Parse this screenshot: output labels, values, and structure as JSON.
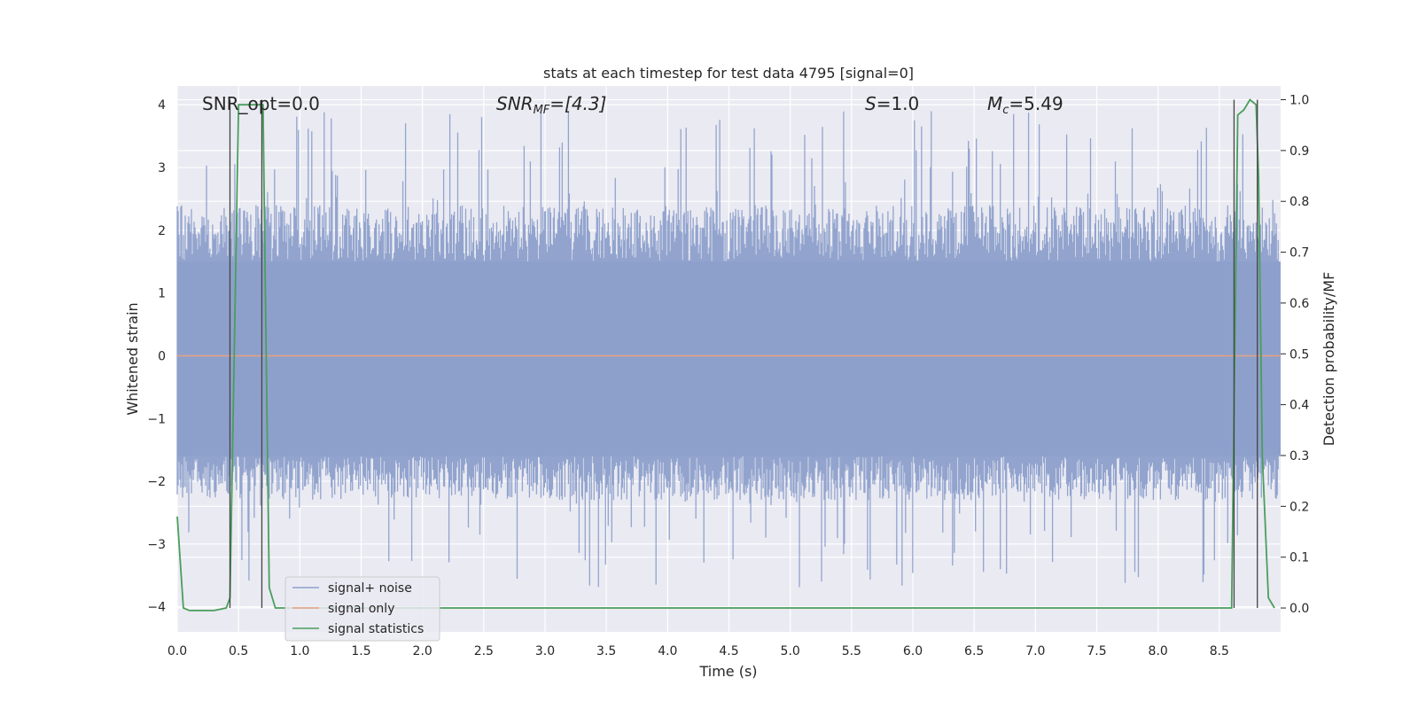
{
  "chart_data": {
    "type": "line",
    "title": "stats at each timestep for test data 4795 [signal=0]",
    "xlabel": "Time (s)",
    "ylabel": "Whitened strain",
    "y2label": "Detection probability/MF",
    "xlim": [
      0.0,
      9.0
    ],
    "ylim": [
      -4.4,
      4.3
    ],
    "y2lim": [
      -0.047,
      1.027
    ],
    "xticks": [
      "0.0",
      "0.5",
      "1.0",
      "1.5",
      "2.0",
      "2.5",
      "3.0",
      "3.5",
      "4.0",
      "4.5",
      "5.0",
      "5.5",
      "6.0",
      "6.5",
      "7.0",
      "7.5",
      "8.0",
      "8.5"
    ],
    "xtick_values": [
      0.0,
      0.5,
      1.0,
      1.5,
      2.0,
      2.5,
      3.0,
      3.5,
      4.0,
      4.5,
      5.0,
      5.5,
      6.0,
      6.5,
      7.0,
      7.5,
      8.0,
      8.5
    ],
    "yticks": [
      "−4",
      "−3",
      "−2",
      "−1",
      "0",
      "1",
      "2",
      "3",
      "4"
    ],
    "ytick_values": [
      -4,
      -3,
      -2,
      -1,
      0,
      1,
      2,
      3,
      4
    ],
    "y2ticks": [
      "0.0",
      "0.1",
      "0.2",
      "0.3",
      "0.4",
      "0.5",
      "0.6",
      "0.7",
      "0.8",
      "0.9",
      "1.0"
    ],
    "y2tick_values": [
      0.0,
      0.1,
      0.2,
      0.3,
      0.4,
      0.5,
      0.6,
      0.7,
      0.8,
      0.9,
      1.0
    ],
    "grid": true,
    "legend": {
      "placement": "lower-left",
      "entries": [
        {
          "label": "signal+ noise",
          "color": "#8da0cb"
        },
        {
          "label": "signal only",
          "color": "#e5a17f"
        },
        {
          "label": "signal statistics",
          "color": "#4a9e5c"
        }
      ]
    },
    "annotations": {
      "snr_opt": "SNR_opt=0.0",
      "snr_mf_main": "SNR",
      "snr_mf_sub": "MF",
      "snr_mf_rest": "=[4.3]",
      "s_main": "S",
      "s_rest": "=1.0",
      "mc_main": "M",
      "mc_sub": "c",
      "mc_rest": "=5.49"
    },
    "series": [
      {
        "name": "signal+ noise",
        "kind": "noise-band",
        "color": "#8da0cb",
        "core_range": [
          -1.6,
          1.5
        ],
        "typical_range": [
          -2.3,
          2.4
        ],
        "extreme_range": [
          -3.7,
          3.9
        ],
        "samples": 8192
      },
      {
        "name": "signal only",
        "color": "#e5a17f",
        "x": [
          0.0,
          9.0
        ],
        "y": [
          0.0,
          0.0
        ]
      },
      {
        "name": "signal statistics",
        "axis": "right",
        "color": "#4a9e5c",
        "x": [
          0.0,
          0.05,
          0.1,
          0.2,
          0.3,
          0.4,
          0.43,
          0.5,
          0.55,
          0.6,
          0.65,
          0.7,
          0.72,
          0.75,
          0.8,
          1.0,
          2.0,
          3.0,
          4.0,
          5.0,
          6.0,
          7.0,
          8.0,
          8.5,
          8.6,
          8.65,
          8.7,
          8.75,
          8.8,
          8.82,
          8.85,
          8.9,
          8.95
        ],
        "y": [
          0.18,
          0.0,
          -0.005,
          -0.005,
          -0.005,
          0.0,
          0.02,
          0.99,
          0.99,
          0.99,
          0.99,
          0.99,
          0.6,
          0.04,
          0.0,
          0.0,
          0.0,
          0.0,
          0.0,
          0.0,
          0.0,
          0.0,
          0.0,
          0.0,
          0.0,
          0.97,
          0.98,
          1.0,
          0.99,
          0.85,
          0.3,
          0.02,
          0.0
        ]
      }
    ],
    "markers": [
      {
        "x": 0.43,
        "y2_top": 1.0
      },
      {
        "x": 0.69,
        "y2_top": 1.0
      },
      {
        "x": 8.62,
        "y2_top": 1.0
      },
      {
        "x": 8.81,
        "y2_top": 1.0
      }
    ]
  }
}
